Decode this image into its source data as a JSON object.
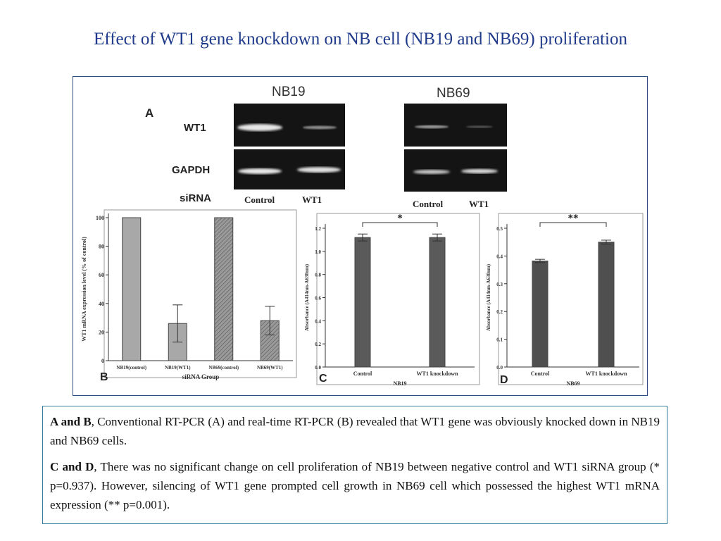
{
  "title": "Effect of WT1 gene knockdown on NB cell (NB19 and NB69) proliferation",
  "panel_a": {
    "letter": "A",
    "nb19_label": "NB19",
    "nb69_label": "NB69",
    "row_labels": [
      "WT1",
      "GAPDH",
      "siRNA"
    ],
    "nb19_lanes": [
      "Control",
      "WT1"
    ],
    "nb69_lanes": [
      "Control",
      "WT1"
    ]
  },
  "chart_data": [
    {
      "panel": "B",
      "type": "bar",
      "ylabel": "WT1 mRNA expression level (% of control)",
      "xlabel": "siRNA Group",
      "categories": [
        "NB19(control)",
        "NB19(WT1)",
        "NB69(control)",
        "NB69(WT1)"
      ],
      "values": [
        100,
        26,
        100,
        28
      ],
      "errors": [
        0,
        13,
        0,
        10
      ],
      "ylim": [
        0,
        100
      ],
      "yticks": [
        0,
        20,
        40,
        60,
        80,
        100
      ]
    },
    {
      "panel": "C",
      "type": "bar",
      "ylabel": "Absorbance (A414nm-A630nm)",
      "xlabel": "NB19",
      "categories": [
        "Control",
        "WT1 knockdown"
      ],
      "values": [
        1.12,
        1.12
      ],
      "errors": [
        0.03,
        0.03
      ],
      "ylim": [
        0,
        1.2
      ],
      "yticks": [
        "0.0",
        "0.2",
        "0.4",
        "0.6",
        "0.8",
        "1.0",
        "1.2"
      ],
      "annotation": "*"
    },
    {
      "panel": "D",
      "type": "bar",
      "ylabel": "Absorbance (A414nm-A630nm)",
      "xlabel": "NB69",
      "categories": [
        "Control",
        "WT1 knockdown"
      ],
      "values": [
        0.382,
        0.45
      ],
      "errors": [
        0.006,
        0.007
      ],
      "ylim": [
        0,
        0.5
      ],
      "yticks": [
        "0.0",
        "0.1",
        "0.2",
        "0.3",
        "0.4",
        "0.5"
      ],
      "annotation": "**"
    }
  ],
  "caption": {
    "p1_bold": "A and B",
    "p1_text": ", Conventional RT-PCR (A) and real-time RT-PCR (B) revealed that WT1 gene was obviously knocked down in NB19 and NB69 cells.",
    "p2_bold": "C and D",
    "p2_text": ", There was no significant change on cell proliferation of NB19 between negative control and WT1 siRNA group (* p=0.937). However, silencing of WT1 gene prompted cell growth in NB69 cell  which possessed the highest WT1 mRNA expression (** p=0.001)."
  }
}
